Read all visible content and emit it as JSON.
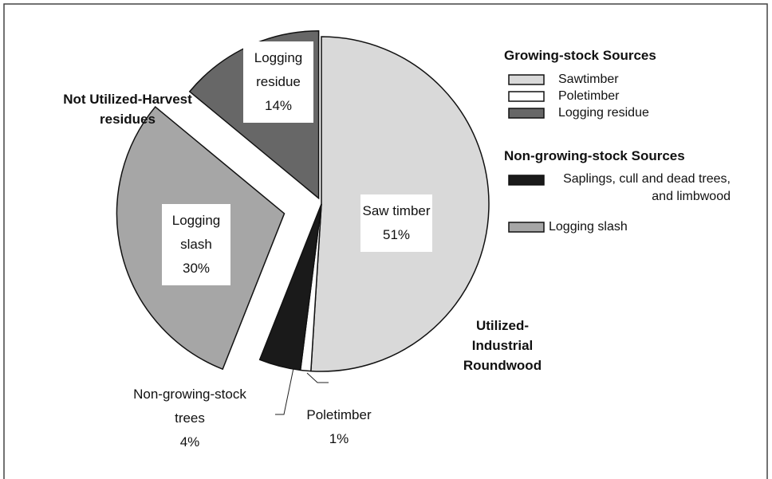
{
  "chart_data": {
    "type": "pie",
    "categories": [
      "Saw timber",
      "Poletimber",
      "Non-growing-stock trees",
      "Logging slash",
      "Logging residue"
    ],
    "values": [
      51,
      1,
      4,
      30,
      14
    ],
    "value_labels": [
      "51%",
      "1%",
      "4%",
      "30%",
      "14%"
    ],
    "colors": [
      "#d9d9d9",
      "#ffffff",
      "#1a1a1a",
      "#a6a6a6",
      "#676767"
    ],
    "explode": [
      false,
      false,
      false,
      true,
      true
    ],
    "legend": [
      {
        "title": "Growing-stock Sources",
        "entries": [
          {
            "name": "Sawtimber",
            "color": "#d9d9d9"
          },
          {
            "name": "Poletimber",
            "color": "#ffffff"
          },
          {
            "name": "Logging residue",
            "color": "#676767"
          }
        ]
      },
      {
        "title": "Non-growing-stock Sources",
        "entries": [
          {
            "name": "Saplings, cull and dead trees, and limbwood",
            "color": "#1a1a1a"
          },
          {
            "name": "Logging slash",
            "color": "#a6a6a6"
          }
        ]
      }
    ],
    "annotations": [
      "Not Utilized-Harvest residues",
      "Utilized-Industrial Roundwood"
    ]
  }
}
